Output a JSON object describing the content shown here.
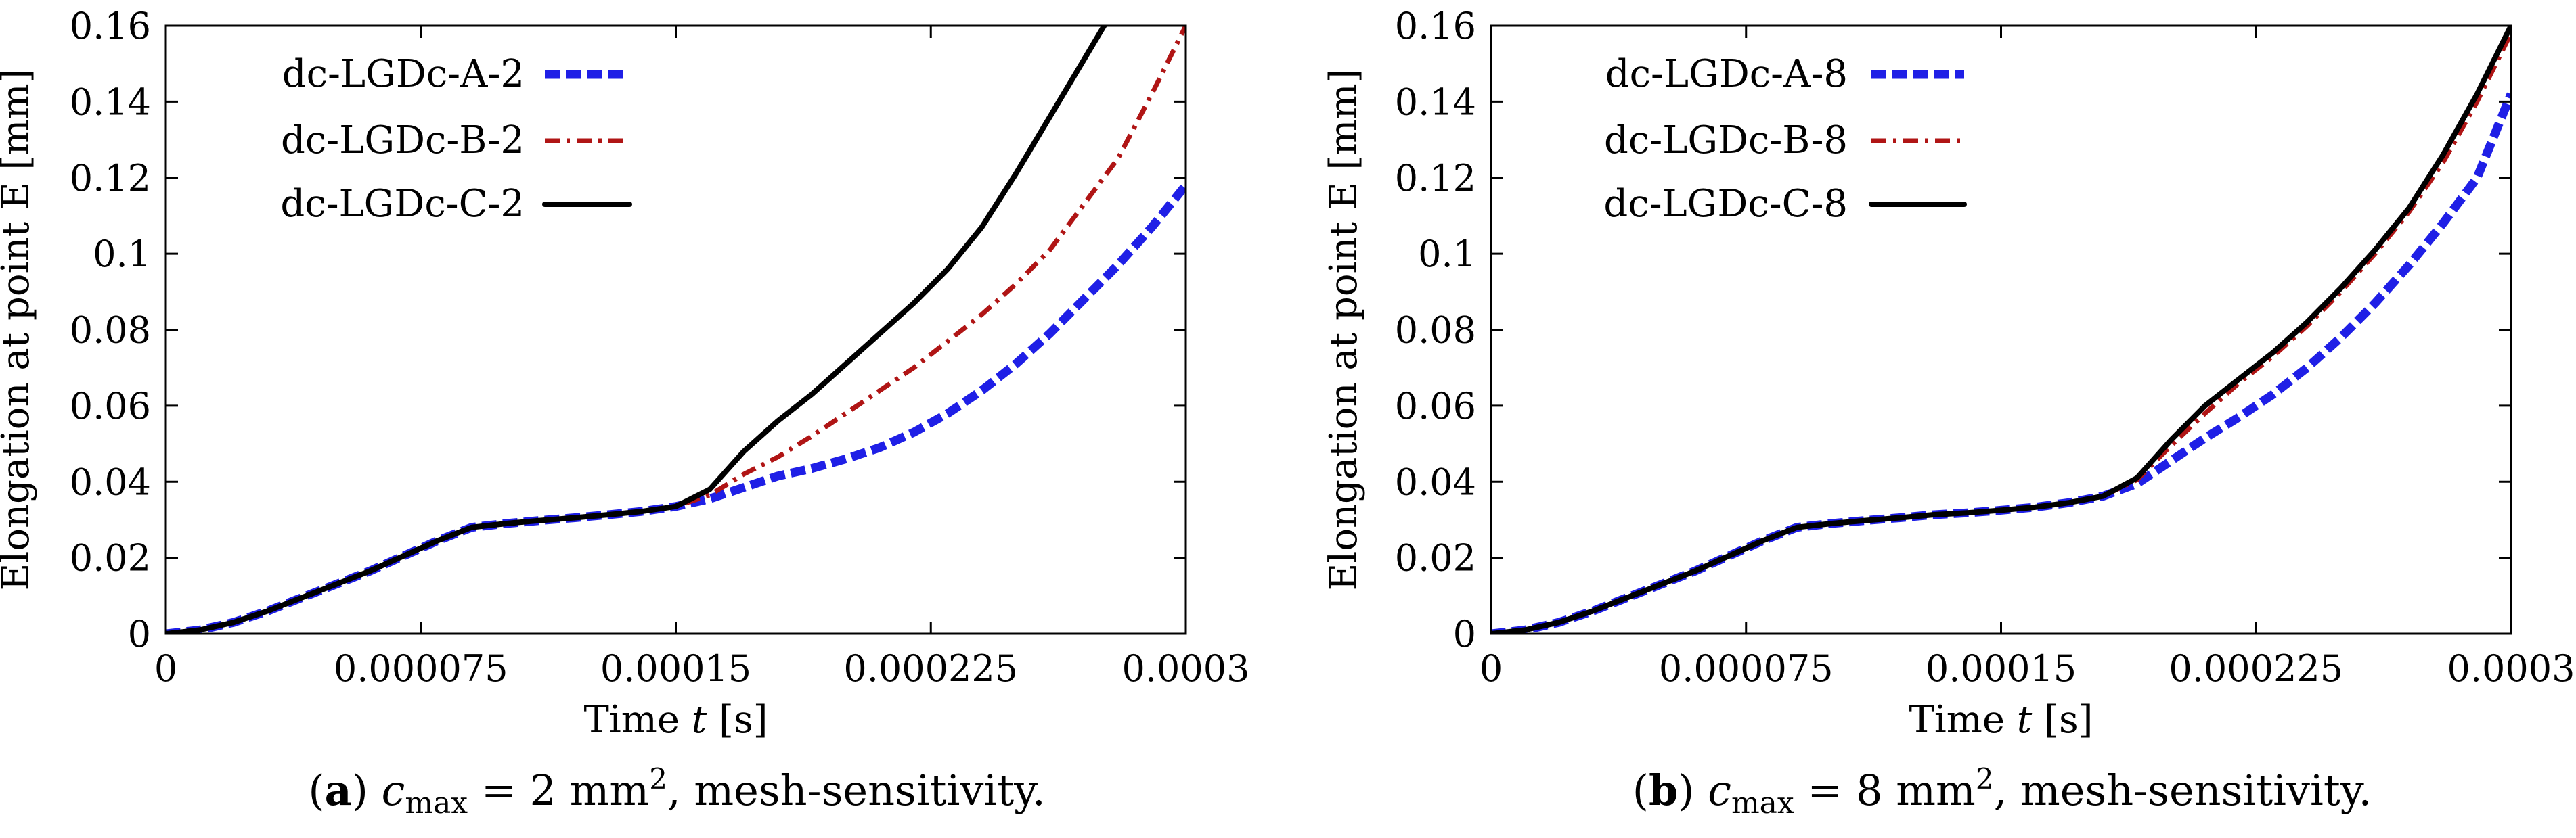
{
  "chart_data": [
    {
      "type": "line",
      "panel": "(a)",
      "caption": {
        "label": "(a)",
        "var": "c",
        "sub": "max",
        "eq": " = 2 mm",
        "sup": "2",
        "tail": ", mesh-sensitivity."
      },
      "xlabel": {
        "pre": "Time ",
        "var": "t",
        "post": " [s]"
      },
      "ylabel": "Elongation at point E [mm]",
      "xlim": [
        0,
        0.0003
      ],
      "ylim": [
        0,
        0.16
      ],
      "xticks": [
        0,
        7.5e-05,
        0.00015,
        0.000225,
        0.0003
      ],
      "xtick_labels": [
        "0",
        "0.000075",
        "0.00015",
        "0.000225",
        "0.0003"
      ],
      "yticks": [
        0,
        0.02,
        0.04,
        0.06,
        0.08,
        0.1,
        0.12,
        0.14,
        0.16
      ],
      "ytick_labels": [
        "0",
        "0.02",
        "0.04",
        "0.06",
        "0.08",
        "0.1",
        "0.12",
        "0.14",
        "0.16"
      ],
      "legend_position": "top-left",
      "series": [
        {
          "name": "dc-LGDc-A-2",
          "color": "#1f1fe6",
          "dash": "dotted-thick",
          "x": [
            0,
            1e-05,
            2e-05,
            3e-05,
            4e-05,
            5e-05,
            6e-05,
            7e-05,
            8e-05,
            9e-05,
            0.0001,
            0.00011,
            0.00012,
            0.00013,
            0.00014,
            0.00015,
            0.00016,
            0.00017,
            0.00018,
            0.00019,
            0.0002,
            0.00021,
            0.00022,
            0.00023,
            0.00024,
            0.00025,
            0.00026,
            0.00027,
            0.00028,
            0.00029,
            0.0003
          ],
          "y": [
            0,
            0.001,
            0.003,
            0.006,
            0.0095,
            0.013,
            0.0165,
            0.0205,
            0.0245,
            0.028,
            0.029,
            0.0298,
            0.0305,
            0.0313,
            0.0322,
            0.0335,
            0.0355,
            0.0385,
            0.0415,
            0.0435,
            0.046,
            0.049,
            0.053,
            0.058,
            0.064,
            0.071,
            0.079,
            0.088,
            0.097,
            0.107,
            0.118
          ]
        },
        {
          "name": "dc-LGDc-B-2",
          "color": "#b01515",
          "dash": "dash-dot",
          "x": [
            0,
            1e-05,
            2e-05,
            3e-05,
            4e-05,
            5e-05,
            6e-05,
            7e-05,
            8e-05,
            9e-05,
            0.0001,
            0.00011,
            0.00012,
            0.00013,
            0.00014,
            0.00015,
            0.00016,
            0.00017,
            0.00018,
            0.00019,
            0.0002,
            0.00021,
            0.00022,
            0.00023,
            0.00024,
            0.00025,
            0.00026,
            0.00027,
            0.00028,
            0.00029,
            0.0003
          ],
          "y": [
            0,
            0.001,
            0.003,
            0.006,
            0.0095,
            0.013,
            0.0165,
            0.0205,
            0.0245,
            0.028,
            0.029,
            0.0298,
            0.0305,
            0.0313,
            0.0322,
            0.0335,
            0.0365,
            0.042,
            0.0465,
            0.052,
            0.058,
            0.064,
            0.07,
            0.077,
            0.084,
            0.092,
            0.101,
            0.113,
            0.125,
            0.142,
            0.16
          ]
        },
        {
          "name": "dc-LGDc-C-2",
          "color": "#000000",
          "dash": "solid",
          "x": [
            0,
            1e-05,
            2e-05,
            3e-05,
            4e-05,
            5e-05,
            6e-05,
            7e-05,
            8e-05,
            9e-05,
            0.0001,
            0.00011,
            0.00012,
            0.00013,
            0.00014,
            0.00015,
            0.00016,
            0.00017,
            0.00018,
            0.00019,
            0.0002,
            0.00021,
            0.00022,
            0.00023,
            0.00024,
            0.00025,
            0.00026,
            0.00027,
            0.000276
          ],
          "y": [
            0,
            0.001,
            0.003,
            0.006,
            0.0095,
            0.013,
            0.0165,
            0.0205,
            0.0245,
            0.028,
            0.029,
            0.0298,
            0.0305,
            0.0313,
            0.0322,
            0.0335,
            0.038,
            0.048,
            0.056,
            0.063,
            0.071,
            0.079,
            0.087,
            0.096,
            0.107,
            0.121,
            0.136,
            0.151,
            0.16
          ]
        }
      ]
    },
    {
      "type": "line",
      "panel": "(b)",
      "caption": {
        "label": "(b)",
        "var": "c",
        "sub": "max",
        "eq": " = 8 mm",
        "sup": "2",
        "tail": ", mesh-sensitivity."
      },
      "xlabel": {
        "pre": "Time ",
        "var": "t",
        "post": " [s]"
      },
      "ylabel": "Elongation at point E [mm]",
      "xlim": [
        0,
        0.0003
      ],
      "ylim": [
        0,
        0.16
      ],
      "xticks": [
        0,
        7.5e-05,
        0.00015,
        0.000225,
        0.0003
      ],
      "xtick_labels": [
        "0",
        "0.000075",
        "0.00015",
        "0.000225",
        "0.0003"
      ],
      "yticks": [
        0,
        0.02,
        0.04,
        0.06,
        0.08,
        0.1,
        0.12,
        0.14,
        0.16
      ],
      "ytick_labels": [
        "0",
        "0.02",
        "0.04",
        "0.06",
        "0.08",
        "0.1",
        "0.12",
        "0.14",
        "0.16"
      ],
      "legend_position": "top-left",
      "series": [
        {
          "name": "dc-LGDc-A-8",
          "color": "#1f1fe6",
          "dash": "dotted-thick",
          "x": [
            0,
            1e-05,
            2e-05,
            3e-05,
            4e-05,
            5e-05,
            6e-05,
            7e-05,
            8e-05,
            9e-05,
            0.0001,
            0.00011,
            0.00012,
            0.00013,
            0.00014,
            0.00015,
            0.00016,
            0.00017,
            0.00018,
            0.00019,
            0.0002,
            0.00021,
            0.00022,
            0.00023,
            0.00024,
            0.00025,
            0.00026,
            0.00027,
            0.00028,
            0.00029,
            0.0003
          ],
          "y": [
            0,
            0.001,
            0.003,
            0.006,
            0.0095,
            0.013,
            0.0165,
            0.0205,
            0.0245,
            0.028,
            0.029,
            0.0298,
            0.0305,
            0.0313,
            0.0318,
            0.0325,
            0.0333,
            0.0345,
            0.0362,
            0.0395,
            0.0455,
            0.0515,
            0.057,
            0.063,
            0.07,
            0.078,
            0.087,
            0.097,
            0.108,
            0.12,
            0.142
          ]
        },
        {
          "name": "dc-LGDc-B-8",
          "color": "#b01515",
          "dash": "dash-dot",
          "x": [
            0,
            1e-05,
            2e-05,
            3e-05,
            4e-05,
            5e-05,
            6e-05,
            7e-05,
            8e-05,
            9e-05,
            0.0001,
            0.00011,
            0.00012,
            0.00013,
            0.00014,
            0.00015,
            0.00016,
            0.00017,
            0.00018,
            0.00019,
            0.0002,
            0.00021,
            0.00022,
            0.00023,
            0.00024,
            0.00025,
            0.00026,
            0.00027,
            0.00028,
            0.00029,
            0.0003
          ],
          "y": [
            0,
            0.001,
            0.003,
            0.006,
            0.0095,
            0.013,
            0.0165,
            0.0205,
            0.0245,
            0.028,
            0.029,
            0.0298,
            0.0305,
            0.0313,
            0.0318,
            0.0325,
            0.0333,
            0.0345,
            0.0362,
            0.0405,
            0.0495,
            0.058,
            0.066,
            0.073,
            0.081,
            0.09,
            0.1,
            0.111,
            0.124,
            0.14,
            0.158
          ]
        },
        {
          "name": "dc-LGDc-C-8",
          "color": "#000000",
          "dash": "solid",
          "x": [
            0,
            1e-05,
            2e-05,
            3e-05,
            4e-05,
            5e-05,
            6e-05,
            7e-05,
            8e-05,
            9e-05,
            0.0001,
            0.00011,
            0.00012,
            0.00013,
            0.00014,
            0.00015,
            0.00016,
            0.00017,
            0.00018,
            0.00019,
            0.0002,
            0.00021,
            0.00022,
            0.00023,
            0.00024,
            0.00025,
            0.00026,
            0.00027,
            0.00028,
            0.00029,
            0.0003
          ],
          "y": [
            0,
            0.001,
            0.003,
            0.006,
            0.0095,
            0.013,
            0.0165,
            0.0205,
            0.0245,
            0.028,
            0.029,
            0.0298,
            0.0305,
            0.0313,
            0.0318,
            0.0325,
            0.0333,
            0.0345,
            0.0362,
            0.041,
            0.051,
            0.06,
            0.067,
            0.074,
            0.082,
            0.091,
            0.101,
            0.112,
            0.126,
            0.142,
            0.16
          ]
        }
      ]
    }
  ]
}
